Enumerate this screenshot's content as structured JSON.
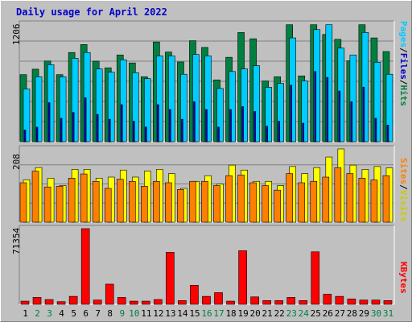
{
  "title": "Daily usage for April 2022",
  "colors": {
    "hits": "#00ccff",
    "files": "#0000cc",
    "pages": "#008040",
    "visits": "#ffff00",
    "sites": "#ff8000",
    "kbytes": "#ff0000",
    "weekend": "#008040",
    "weekday": "#000000"
  },
  "chart_data": [
    {
      "type": "bar",
      "panel": "hits-files-pages",
      "categories": [
        "1",
        "2",
        "3",
        "4",
        "5",
        "6",
        "7",
        "8",
        "9",
        "10",
        "11",
        "12",
        "13",
        "14",
        "15",
        "16",
        "17",
        "18",
        "19",
        "20",
        "21",
        "22",
        "23",
        "24",
        "25",
        "26",
        "27",
        "28",
        "29",
        "30",
        "31"
      ],
      "ymax_label": "1206",
      "ymax": 1206,
      "right_label": {
        "pages": "Pages",
        "files": "Files",
        "hits": "Hits",
        "sep": "/"
      },
      "series": [
        {
          "name": "Pages",
          "values": [
            688,
            744,
            828,
            688,
            915,
            997,
            826,
            758,
            890,
            808,
            666,
            1023,
            920,
            818,
            1036,
            967,
            634,
            866,
            1120,
            1056,
            623,
            666,
            1200,
            675,
            1200,
            1100,
            1050,
            830,
            1200,
            1065,
            925
          ]
        },
        {
          "name": "Hits",
          "values": [
            540,
            666,
            790,
            666,
            856,
            915,
            747,
            713,
            840,
            708,
            647,
            880,
            880,
            692,
            895,
            880,
            546,
            720,
            747,
            780,
            558,
            598,
            1065,
            623,
            1150,
            1200,
            960,
            890,
            1120,
            815,
            692
          ]
        },
        {
          "name": "Files",
          "values": [
            0,
            0,
            0,
            0,
            0,
            0,
            0,
            0,
            0,
            0,
            0,
            0,
            0,
            0,
            0,
            0,
            0,
            0,
            0,
            0,
            0,
            0,
            0,
            0,
            0,
            0,
            0,
            0,
            0,
            0,
            0
          ]
        }
      ],
      "files_values": [
        120,
        150,
        400,
        240,
        300,
        450,
        280,
        230,
        380,
        210,
        150,
        380,
        330,
        230,
        410,
        330,
        150,
        330,
        360,
        310,
        160,
        210,
        580,
        190,
        720,
        660,
        520,
        410,
        560,
        240,
        170
      ]
    },
    {
      "type": "bar",
      "panel": "visits-sites",
      "categories": [
        "1",
        "2",
        "3",
        "4",
        "5",
        "6",
        "7",
        "8",
        "9",
        "10",
        "11",
        "12",
        "13",
        "14",
        "15",
        "16",
        "17",
        "18",
        "19",
        "20",
        "21",
        "22",
        "23",
        "24",
        "25",
        "26",
        "27",
        "28",
        "29",
        "30",
        "31"
      ],
      "ymax_label": "208",
      "ymax": 208,
      "right_label": {
        "sites": "Sites",
        "visits": "Visits",
        "sep": "/"
      },
      "series": [
        {
          "name": "Visits",
          "values": [
            120,
            155,
            125,
            104,
            150,
            150,
            125,
            128,
            148,
            128,
            145,
            150,
            138,
            96,
            116,
            132,
            108,
            162,
            148,
            116,
            116,
            104,
            158,
            138,
            155,
            185,
            208,
            162,
            150,
            158,
            154
          ]
        },
        {
          "name": "Sites",
          "values": [
            112,
            145,
            100,
            102,
            125,
            137,
            116,
            96,
            122,
            116,
            102,
            116,
            112,
            93,
            116,
            116,
            104,
            132,
            134,
            112,
            104,
            91,
            138,
            112,
            116,
            128,
            155,
            138,
            125,
            120,
            132
          ]
        }
      ]
    },
    {
      "type": "bar",
      "panel": "kbytes",
      "categories": [
        "1",
        "2",
        "3",
        "4",
        "5",
        "6",
        "7",
        "8",
        "9",
        "10",
        "11",
        "12",
        "13",
        "14",
        "15",
        "16",
        "17",
        "18",
        "19",
        "20",
        "21",
        "22",
        "23",
        "24",
        "25",
        "26",
        "27",
        "28",
        "29",
        "30",
        "31"
      ],
      "ymax_label": "71354",
      "ymax": 71354,
      "right_label": {
        "kbytes": "KBytes"
      },
      "series": [
        {
          "name": "KBytes",
          "values": [
            3000,
            6500,
            4500,
            2500,
            7500,
            71354,
            4000,
            19000,
            6500,
            3000,
            3000,
            4500,
            49000,
            3500,
            18000,
            7500,
            11000,
            3000,
            50500,
            7000,
            3500,
            3500,
            6500,
            3500,
            49500,
            9500,
            7500,
            5000,
            4000,
            4000,
            3500
          ]
        }
      ]
    }
  ],
  "weekend_days": [
    2,
    3,
    9,
    10,
    16,
    17,
    23,
    24,
    30,
    31
  ]
}
